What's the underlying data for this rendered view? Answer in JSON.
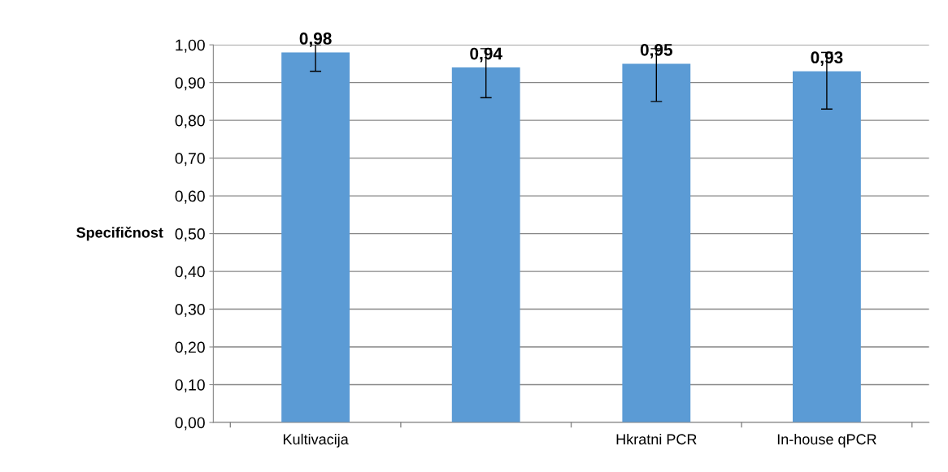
{
  "chart_data": {
    "type": "bar",
    "ylabel": "Specifičnost",
    "categories": [
      "Kultivacija",
      null,
      "Hkratni PCR",
      "In-house qPCR"
    ],
    "values": [
      0.98,
      0.94,
      0.95,
      0.93
    ],
    "value_labels": [
      "0,98",
      "0,94",
      "0,95",
      "0,93"
    ],
    "errors": [
      [
        0.93,
        1.0
      ],
      [
        0.86,
        0.99
      ],
      [
        0.85,
        0.99
      ],
      [
        0.83,
        0.98
      ]
    ],
    "color": "#5b9bd5",
    "ylim": [
      0,
      1.0
    ],
    "yticks": [
      {
        "value": 0,
        "label": "0,00"
      },
      {
        "value": 0.1,
        "label": "0,10"
      },
      {
        "value": 0.2,
        "label": "0,20"
      },
      {
        "value": 0.3,
        "label": "0,30"
      },
      {
        "value": 0.4,
        "label": "0,40"
      },
      {
        "value": 0.5,
        "label": "0,50"
      },
      {
        "value": 0.6,
        "label": "0,60"
      },
      {
        "value": 0.7,
        "label": "0,70"
      },
      {
        "value": 0.8,
        "label": "0,80"
      },
      {
        "value": 0.9,
        "label": "0,90"
      },
      {
        "value": 1.0,
        "label": "1,00"
      }
    ],
    "grid": "y"
  }
}
